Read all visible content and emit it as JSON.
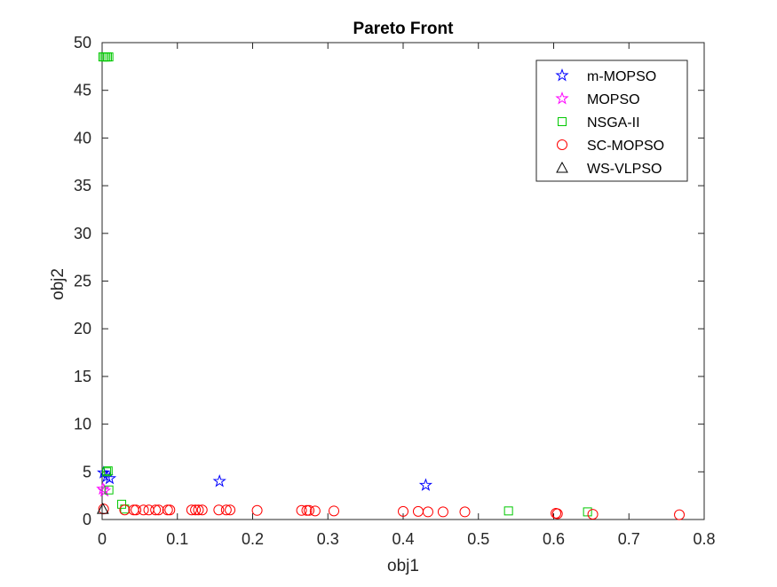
{
  "chart_data": {
    "type": "scatter",
    "title": "Pareto Front",
    "xlabel": "obj1",
    "ylabel": "obj2",
    "xlim": [
      0,
      0.8
    ],
    "ylim": [
      0,
      50
    ],
    "xticks": [
      0,
      0.1,
      0.2,
      0.3,
      0.4,
      0.5,
      0.6,
      0.7,
      0.8
    ],
    "xtick_labels": [
      "0",
      "0.1",
      "0.2",
      "0.3",
      "0.4",
      "0.5",
      "0.6",
      "0.7",
      "0.8"
    ],
    "yticks": [
      0,
      5,
      10,
      15,
      20,
      25,
      30,
      35,
      40,
      45,
      50
    ],
    "ytick_labels": [
      "0",
      "5",
      "10",
      "15",
      "20",
      "25",
      "30",
      "35",
      "40",
      "45",
      "50"
    ],
    "grid": false,
    "legend_position": "top-right",
    "series": [
      {
        "name": "m-MOPSO",
        "marker": "star",
        "color": "#0000ff",
        "x": [
          0.002,
          0.006,
          0.01,
          0.156,
          0.43
        ],
        "y": [
          4.9,
          4.5,
          4.3,
          4.0,
          3.6
        ]
      },
      {
        "name": "MOPSO",
        "marker": "star",
        "color": "#ff00ff",
        "x": [
          0.001,
          0.003
        ],
        "y": [
          3.2,
          3.0
        ]
      },
      {
        "name": "NSGA-II",
        "marker": "square",
        "color": "#00c800",
        "x": [
          0.001,
          0.003,
          0.005,
          0.007,
          0.009,
          0.008,
          0.006,
          0.009,
          0.026,
          0.03,
          0.54,
          0.645
        ],
        "y": [
          48.5,
          48.5,
          48.5,
          48.5,
          48.5,
          5.1,
          5.0,
          3.1,
          1.6,
          1.1,
          0.9,
          0.8
        ]
      },
      {
        "name": "SC-MOPSO",
        "marker": "circle",
        "color": "#ff0000",
        "x": [
          0.002,
          0.03,
          0.042,
          0.045,
          0.055,
          0.062,
          0.071,
          0.075,
          0.087,
          0.09,
          0.119,
          0.124,
          0.128,
          0.133,
          0.155,
          0.165,
          0.17,
          0.206,
          0.265,
          0.272,
          0.275,
          0.283,
          0.308,
          0.4,
          0.42,
          0.433,
          0.453,
          0.482,
          0.603,
          0.605,
          0.652,
          0.767
        ],
        "y": [
          1.1,
          1.0,
          1.0,
          1.0,
          1.0,
          1.0,
          1.0,
          1.0,
          1.0,
          1.0,
          1.0,
          1.0,
          1.0,
          1.0,
          1.0,
          1.0,
          1.0,
          0.95,
          0.95,
          0.95,
          0.95,
          0.9,
          0.9,
          0.85,
          0.85,
          0.8,
          0.8,
          0.8,
          0.65,
          0.6,
          0.55,
          0.5
        ]
      },
      {
        "name": "WS-VLPSO",
        "marker": "triangle",
        "color": "#000000",
        "x": [
          0.001
        ],
        "y": [
          1.1
        ]
      }
    ]
  }
}
